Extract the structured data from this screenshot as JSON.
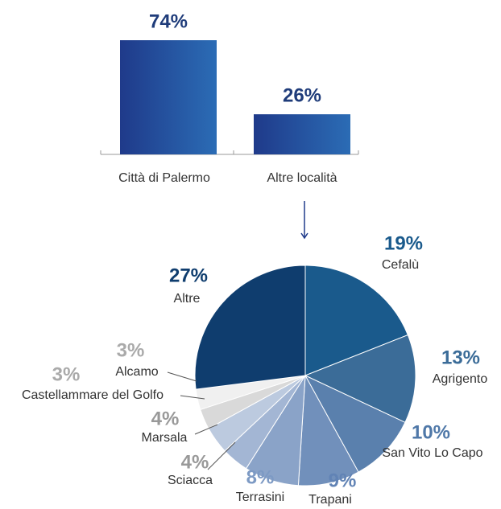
{
  "chart_data": [
    {
      "type": "bar",
      "categories": [
        "Città di Palermo",
        "Altre località"
      ],
      "values": [
        74,
        26
      ],
      "value_labels": [
        "74%",
        "26%"
      ],
      "color": [
        "#1f3a8a",
        "#2b6cb5"
      ]
    },
    {
      "type": "pie",
      "categories": [
        "Cefalù",
        "Agrigento",
        "San Vito Lo Capo",
        "Trapani",
        "Terrasini",
        "Sciacca",
        "Marsala",
        "Castellammare del Golfo",
        "Alcamo",
        "Altre"
      ],
      "values": [
        19,
        13,
        10,
        9,
        8,
        4,
        4,
        3,
        3,
        27
      ],
      "value_labels": [
        "19%",
        "13%",
        "10%",
        "9%",
        "8%",
        "4%",
        "4%",
        "3%",
        "3%",
        "27%"
      ],
      "colors": [
        "#1a5a8c",
        "#3b6c98",
        "#5a80ad",
        "#7190bb",
        "#8aa3c8",
        "#a3b6d4",
        "#bccadf",
        "#d9d9d9",
        "#f0f0f0",
        "#0f3d6e"
      ],
      "label_colors": [
        "#1a5a8c",
        "#3b6c98",
        "#4f78a8",
        "#6183b5",
        "#7d9ac4",
        "#999999",
        "#999999",
        "#aaaaaa",
        "#aaaaaa",
        "#0f3d6e"
      ]
    }
  ]
}
